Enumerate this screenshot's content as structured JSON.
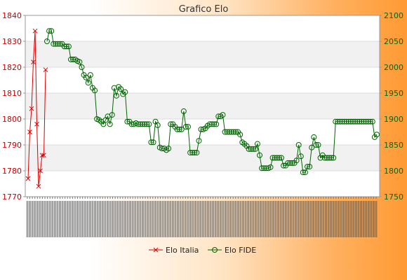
{
  "chart_data": {
    "type": "line",
    "title": "Grafico Elo",
    "xlabel": "",
    "y_left": {
      "range": [
        1770,
        1840
      ],
      "ticks": [
        1770,
        1780,
        1790,
        1800,
        1810,
        1820,
        1830,
        1840
      ],
      "color": "#cc0000"
    },
    "y_right": {
      "range": [
        1750,
        2100
      ],
      "ticks": [
        1750,
        1800,
        1850,
        1900,
        1950,
        2000,
        2050,
        2100
      ],
      "color": "#006600"
    },
    "grid": true,
    "legend_position": "bottom-center",
    "series": [
      {
        "name": "Elo Italia",
        "axis": "left",
        "color": "#dd0000",
        "values": [
          1777,
          1795,
          1804,
          1822,
          1834,
          1798,
          1774,
          1780,
          1786,
          1786,
          1819
        ]
      },
      {
        "name": "Elo FIDE",
        "axis": "right",
        "color": "#006600",
        "values": [
          2050,
          2070,
          2070,
          2045,
          2045,
          2045,
          2045,
          2045,
          2040,
          2040,
          2040,
          2015,
          2015,
          2015,
          2012,
          2010,
          2000,
          1985,
          1980,
          1970,
          1985,
          1960,
          1955,
          1900,
          1898,
          1895,
          1890,
          1898,
          1905,
          1890,
          1908,
          1960,
          1945,
          1962,
          1958,
          1948,
          1952,
          1895,
          1895,
          1890,
          1890,
          1892,
          1890,
          1890,
          1890,
          1890,
          1890,
          1890,
          1855,
          1855,
          1895,
          1888,
          1845,
          1843,
          1843,
          1840,
          1843,
          1890,
          1890,
          1885,
          1880,
          1880,
          1880,
          1915,
          1885,
          1885,
          1835,
          1835,
          1835,
          1835,
          1858,
          1880,
          1880,
          1882,
          1887,
          1890,
          1890,
          1890,
          1890,
          1905,
          1905,
          1908,
          1875,
          1875,
          1875,
          1875,
          1875,
          1875,
          1875,
          1870,
          1855,
          1852,
          1848,
          1842,
          1842,
          1842,
          1842,
          1852,
          1830,
          1805,
          1805,
          1805,
          1805,
          1807,
          1825,
          1825,
          1825,
          1825,
          1825,
          1810,
          1810,
          1815,
          1815,
          1815,
          1815,
          1820,
          1850,
          1828,
          1797,
          1797,
          1808,
          1808,
          1845,
          1865,
          1850,
          1850,
          1825,
          1830,
          1825,
          1825,
          1825,
          1825,
          1825,
          1895,
          1895,
          1895,
          1895,
          1895,
          1895,
          1895,
          1895,
          1895,
          1895,
          1895,
          1895,
          1895,
          1895,
          1895,
          1895,
          1895,
          1895,
          1865,
          1870
        ]
      }
    ]
  }
}
